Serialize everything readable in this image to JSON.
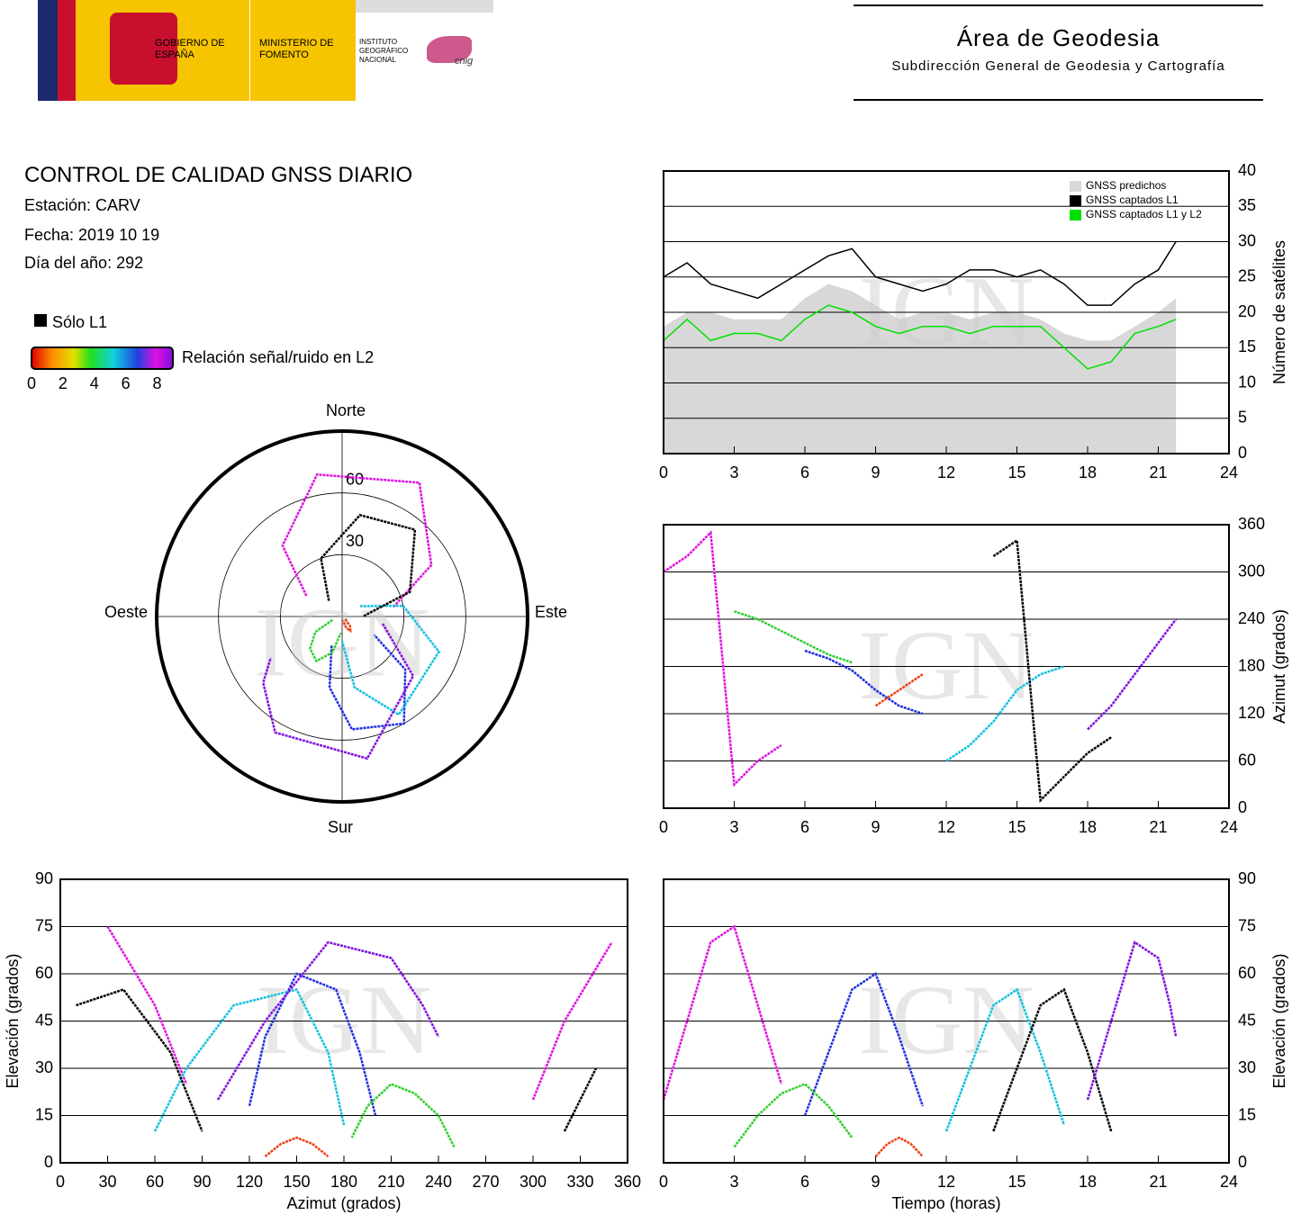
{
  "header": {
    "gobierno": "GOBIERNO DE ESPAÑA",
    "ministerio": "MINISTERIO DE FOMENTO",
    "instituto": "INSTITUTO GEOGRÁFICO NACIONAL",
    "cnig": "cnig",
    "area": "Área de Geodesia",
    "subdireccion": "Subdirección General de Geodesia y Cartografía"
  },
  "info": {
    "title": "CONTROL DE CALIDAD GNSS DIARIO",
    "station": "Estación: CARV",
    "date": "Fecha: 2019 10 19",
    "doy": "Día del año: 292"
  },
  "colorbar": {
    "solo_l1": "Sólo L1",
    "label": "Relación señal/ruido en L2",
    "lim": [
      0,
      9
    ],
    "ticks": [
      0,
      2,
      4,
      6,
      8
    ]
  },
  "watermark": "IGN",
  "chart_data": [
    {
      "type": "line",
      "ylabel": "Número de satélites",
      "xlim": [
        0,
        24
      ],
      "xticks": [
        0,
        3,
        6,
        9,
        12,
        15,
        18,
        21,
        24
      ],
      "ylim": [
        0,
        40
      ],
      "yticks": [
        0,
        5,
        10,
        15,
        20,
        25,
        30,
        35,
        40
      ],
      "grid": true,
      "legend": "upper right",
      "x": [
        0,
        1,
        2,
        3,
        4,
        5,
        6,
        7,
        8,
        9,
        10,
        11,
        12,
        13,
        14,
        15,
        16,
        17,
        18,
        19,
        20,
        21,
        21.75
      ],
      "series": [
        {
          "name": "GNSS predichos",
          "color": "#d8d8d8",
          "kind": "area",
          "values": [
            18,
            20,
            20,
            19,
            19,
            19,
            22,
            24,
            23,
            21,
            19,
            20,
            20,
            19,
            20,
            20,
            19,
            17,
            16,
            16,
            18,
            20,
            22
          ]
        },
        {
          "name": "GNSS captados L1",
          "color": "#000000",
          "kind": "line",
          "values": [
            25,
            27,
            24,
            23,
            22,
            24,
            26,
            28,
            29,
            25,
            24,
            23,
            24,
            26,
            26,
            25,
            26,
            24,
            21,
            21,
            24,
            26,
            30
          ]
        },
        {
          "name": "GNSS captados L1 y L2",
          "color": "#00e000",
          "kind": "line",
          "values": [
            16,
            19,
            16,
            17,
            17,
            16,
            19,
            21,
            20,
            18,
            17,
            18,
            18,
            17,
            18,
            18,
            18,
            15,
            12,
            13,
            17,
            18,
            19
          ]
        }
      ]
    },
    {
      "type": "scatter",
      "ylabel": "Azimut (grados)",
      "xlim": [
        0,
        24
      ],
      "xticks": [
        0,
        3,
        6,
        9,
        12,
        15,
        18,
        21,
        24
      ],
      "ylim": [
        0,
        360
      ],
      "yticks": [
        0,
        60,
        120,
        180,
        240,
        300,
        360
      ],
      "grid": true,
      "series": [
        {
          "color": "#e010e0",
          "x": [
            0,
            1,
            2,
            3,
            4,
            5
          ],
          "values": [
            300,
            320,
            350,
            30,
            60,
            80
          ]
        },
        {
          "color": "#2030e0",
          "x": [
            6,
            7,
            8,
            9,
            10,
            11
          ],
          "values": [
            200,
            190,
            175,
            150,
            130,
            120
          ]
        },
        {
          "color": "#10c0e0",
          "x": [
            12,
            13,
            14,
            15,
            16,
            17
          ],
          "values": [
            60,
            80,
            110,
            150,
            170,
            180
          ]
        },
        {
          "color": "#30d030",
          "x": [
            3,
            4,
            5,
            6,
            7,
            8
          ],
          "values": [
            250,
            240,
            225,
            210,
            195,
            185
          ]
        },
        {
          "color": "#000000",
          "x": [
            14,
            15,
            16,
            17,
            18,
            19
          ],
          "values": [
            320,
            340,
            10,
            40,
            70,
            90
          ]
        },
        {
          "color": "#8010e0",
          "x": [
            18,
            19,
            20,
            21,
            21.5,
            21.75
          ],
          "values": [
            100,
            130,
            170,
            210,
            230,
            240
          ]
        },
        {
          "color": "#f04010",
          "x": [
            9,
            9.5,
            10,
            10.5,
            11
          ],
          "values": [
            130,
            140,
            150,
            160,
            170
          ]
        }
      ]
    },
    {
      "type": "polar",
      "directions": [
        "Norte",
        "Este",
        "Sur",
        "Oeste"
      ],
      "rlim": [
        90,
        0
      ],
      "rticks": [
        30,
        60
      ],
      "series": [
        {
          "color": "#e010e0",
          "x": [
            300,
            320,
            350,
            30,
            60,
            80
          ],
          "values": [
            20,
            45,
            70,
            75,
            50,
            25
          ]
        },
        {
          "color": "#2030e0",
          "x": [
            200,
            190,
            175,
            150,
            130,
            120
          ],
          "values": [
            15,
            35,
            55,
            60,
            40,
            18
          ]
        },
        {
          "color": "#10c0e0",
          "x": [
            60,
            80,
            110,
            150,
            170,
            180
          ],
          "values": [
            10,
            30,
            50,
            55,
            35,
            12
          ]
        },
        {
          "color": "#30d030",
          "x": [
            250,
            240,
            225,
            210,
            195,
            185
          ],
          "values": [
            5,
            15,
            22,
            25,
            18,
            8
          ]
        },
        {
          "color": "#000000",
          "x": [
            320,
            340,
            10,
            40,
            70,
            90
          ],
          "values": [
            10,
            30,
            50,
            55,
            35,
            10
          ]
        },
        {
          "color": "#8010e0",
          "x": [
            100,
            130,
            170,
            210,
            230,
            240
          ],
          "values": [
            20,
            45,
            70,
            65,
            50,
            40
          ]
        },
        {
          "color": "#f04010",
          "x": [
            130,
            140,
            150,
            160,
            170
          ],
          "values": [
            2,
            6,
            8,
            6,
            2
          ]
        }
      ]
    },
    {
      "type": "scatter",
      "xlabel": "Azimut (grados)",
      "ylabel": "Elevación (grados)",
      "xlim": [
        0,
        360
      ],
      "xticks": [
        0,
        30,
        60,
        90,
        120,
        150,
        180,
        210,
        240,
        270,
        300,
        330,
        360
      ],
      "ylim": [
        0,
        90
      ],
      "yticks": [
        0,
        15,
        30,
        45,
        60,
        75,
        90
      ],
      "grid": true,
      "series": [
        {
          "color": "#e010e0",
          "x": [
            300,
            320,
            350
          ],
          "values": [
            20,
            45,
            70
          ]
        },
        {
          "color": "#e010e0",
          "x": [
            30,
            60,
            80
          ],
          "values": [
            75,
            50,
            25
          ]
        },
        {
          "color": "#2030e0",
          "x": [
            200,
            190,
            175,
            150,
            130,
            120
          ],
          "values": [
            15,
            35,
            55,
            60,
            40,
            18
          ]
        },
        {
          "color": "#10c0e0",
          "x": [
            60,
            80,
            110,
            150,
            170,
            180
          ],
          "values": [
            10,
            30,
            50,
            55,
            35,
            12
          ]
        },
        {
          "color": "#30d030",
          "x": [
            250,
            240,
            225,
            210,
            195,
            185
          ],
          "values": [
            5,
            15,
            22,
            25,
            18,
            8
          ]
        },
        {
          "color": "#000000",
          "x": [
            320,
            340
          ],
          "values": [
            10,
            30
          ]
        },
        {
          "color": "#000000",
          "x": [
            10,
            40,
            70,
            90
          ],
          "values": [
            50,
            55,
            35,
            10
          ]
        },
        {
          "color": "#8010e0",
          "x": [
            100,
            130,
            170,
            210,
            230,
            240
          ],
          "values": [
            20,
            45,
            70,
            65,
            50,
            40
          ]
        },
        {
          "color": "#f04010",
          "x": [
            130,
            140,
            150,
            160,
            170
          ],
          "values": [
            2,
            6,
            8,
            6,
            2
          ]
        }
      ]
    },
    {
      "type": "scatter",
      "xlabel": "Tiempo (horas)",
      "ylabel": "Elevación (grados)",
      "xlim": [
        0,
        24
      ],
      "xticks": [
        0,
        3,
        6,
        9,
        12,
        15,
        18,
        21,
        24
      ],
      "ylim": [
        0,
        90
      ],
      "yticks": [
        0,
        15,
        30,
        45,
        60,
        75,
        90
      ],
      "grid": true,
      "series": [
        {
          "color": "#e010e0",
          "x": [
            0,
            1,
            2,
            3,
            4,
            5
          ],
          "values": [
            20,
            45,
            70,
            75,
            50,
            25
          ]
        },
        {
          "color": "#2030e0",
          "x": [
            6,
            7,
            8,
            9,
            10,
            11
          ],
          "values": [
            15,
            35,
            55,
            60,
            40,
            18
          ]
        },
        {
          "color": "#10c0e0",
          "x": [
            12,
            13,
            14,
            15,
            16,
            17
          ],
          "values": [
            10,
            30,
            50,
            55,
            35,
            12
          ]
        },
        {
          "color": "#30d030",
          "x": [
            3,
            4,
            5,
            6,
            7,
            8
          ],
          "values": [
            5,
            15,
            22,
            25,
            18,
            8
          ]
        },
        {
          "color": "#000000",
          "x": [
            14,
            15,
            16,
            17,
            18,
            19
          ],
          "values": [
            10,
            30,
            50,
            55,
            35,
            10
          ]
        },
        {
          "color": "#8010e0",
          "x": [
            18,
            19,
            20,
            21,
            21.5,
            21.75
          ],
          "values": [
            20,
            45,
            70,
            65,
            50,
            40
          ]
        },
        {
          "color": "#f04010",
          "x": [
            9,
            9.5,
            10,
            10.5,
            11
          ],
          "values": [
            2,
            6,
            8,
            6,
            2
          ]
        }
      ]
    }
  ]
}
